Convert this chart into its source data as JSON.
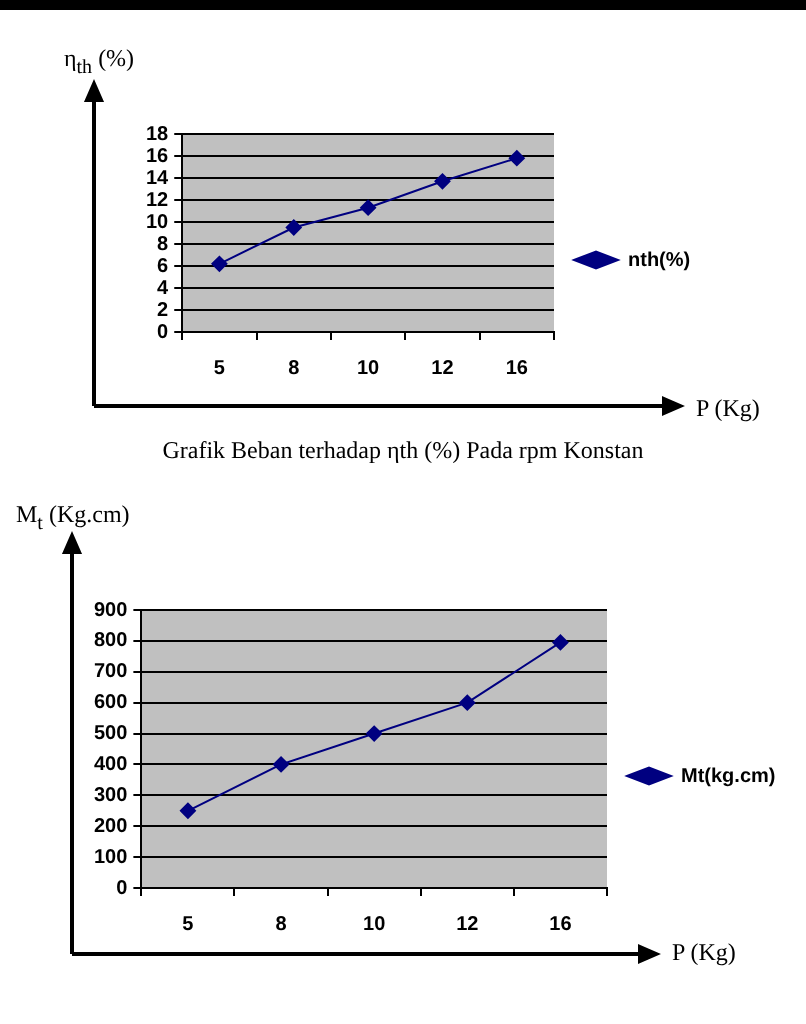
{
  "chart_data": [
    {
      "type": "line",
      "ylabel": "η$_{th}$ (%)",
      "xlabel": "P (Kg)",
      "categories": [
        "5",
        "8",
        "10",
        "12",
        "16"
      ],
      "series": [
        {
          "name": "nth(%)",
          "color": "#000080",
          "values": [
            6.2,
            9.5,
            11.3,
            13.7,
            15.8
          ]
        }
      ],
      "ylim": [
        0,
        18
      ],
      "yticks": [
        0,
        2,
        4,
        6,
        8,
        10,
        12,
        14,
        16,
        18
      ],
      "grid": "y",
      "legend": "right",
      "marker": "diamond",
      "annotations": [
        "Grafik Beban terhadap ηth (%)   Pada rpm Konstan"
      ]
    },
    {
      "type": "line",
      "ylabel": "M$_{t}$ (Kg.cm)",
      "xlabel": "P (Kg)",
      "categories": [
        "5",
        "8",
        "10",
        "12",
        "16"
      ],
      "series": [
        {
          "name": "Mt(kg.cm)",
          "color": "#000080",
          "values": [
            250,
            400,
            500,
            600,
            795
          ]
        }
      ],
      "ylim": [
        0,
        900
      ],
      "yticks": [
        0,
        100,
        200,
        300,
        400,
        500,
        600,
        700,
        800,
        900
      ],
      "grid": "y",
      "legend": "right",
      "marker": "diamond"
    }
  ]
}
